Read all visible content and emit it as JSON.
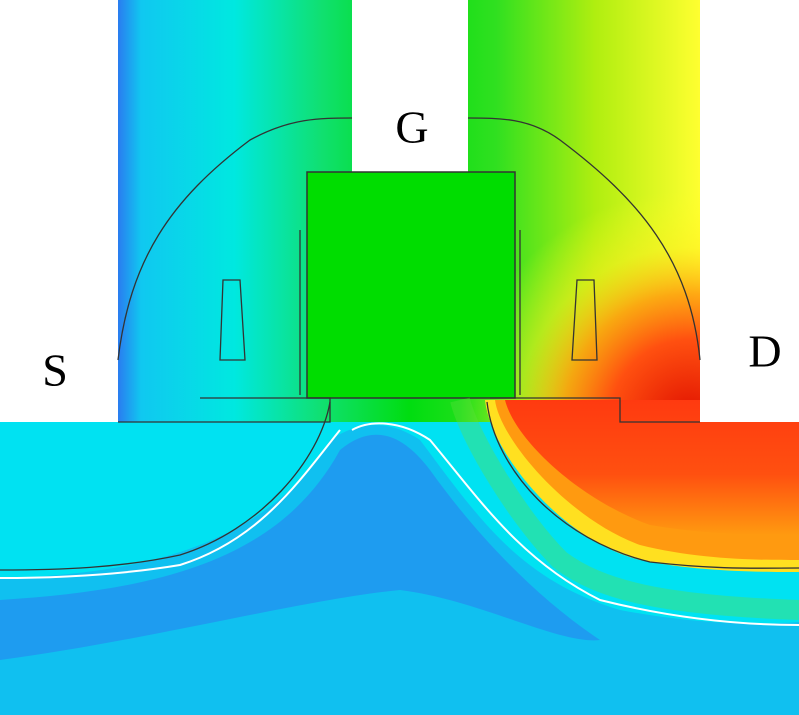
{
  "labels": {
    "source": "S",
    "gate": "G",
    "drain": "D"
  }
}
